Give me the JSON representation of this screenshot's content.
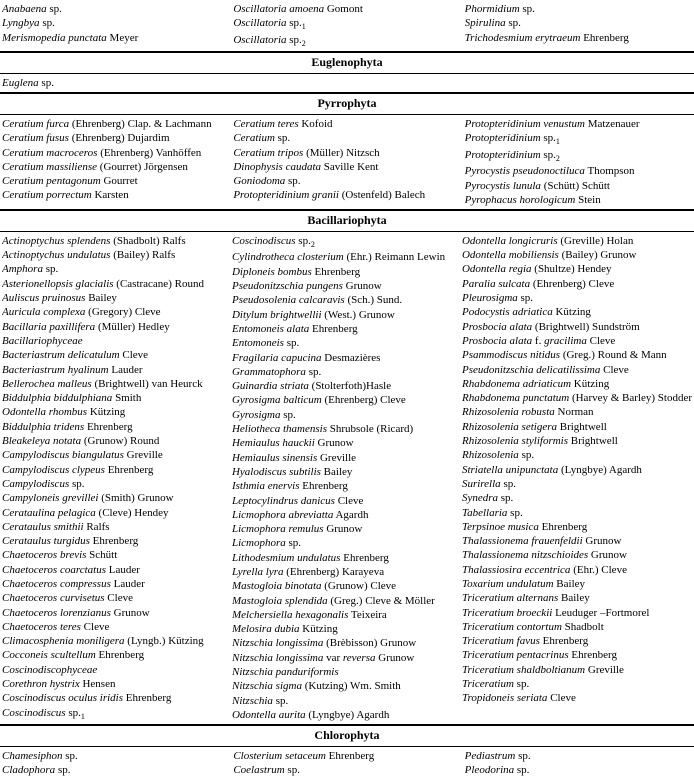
{
  "topRows": {
    "col1": [
      {
        "name": "Anabaena",
        "rest": " sp."
      },
      {
        "name": "Lyngbya",
        "rest": " sp."
      },
      {
        "name": "Merismopedia punctata",
        "auth": " Meyer"
      }
    ],
    "col2": [
      {
        "name": "Oscillatoria amoena",
        "auth": " Gomont"
      },
      {
        "name": "Oscillatoria",
        "rest": " sp.",
        "sub": "1"
      },
      {
        "name": "Oscillatoria",
        "rest": " sp.",
        "sub": "2"
      }
    ],
    "col3": [
      {
        "name": "Phormidium",
        "rest": " sp."
      },
      {
        "name": "Spirulina",
        "rest": " sp."
      },
      {
        "name": "Trichodesmium erytraeum",
        "auth": " Ehrenberg"
      }
    ]
  },
  "sections": [
    {
      "title": "Euglenophyta",
      "cols": [
        [
          {
            "name": "Euglena",
            "rest": " sp."
          }
        ],
        [],
        []
      ]
    },
    {
      "title": "Pyrrophyta",
      "cols": [
        [
          {
            "name": "Ceratium furca",
            "auth": " (Ehrenberg) Clap. & Lachmann"
          },
          {
            "name": "Ceratium fusus",
            "auth": " (Ehrenberg) Dujardim"
          },
          {
            "name": "Ceratium macroceros",
            "auth": " (Ehrenberg) Vanhöffen"
          },
          {
            "name": "Ceratium massiliense",
            "auth": " (Gourret) Jörgensen"
          },
          {
            "name": "Ceratium pentagonum",
            "auth": " Gourret"
          },
          {
            "name": "Ceratium porrectum",
            "auth": " Karsten"
          }
        ],
        [
          {
            "name": "Ceratium teres",
            "auth": " Kofoid"
          },
          {
            "name": "Ceratium",
            "rest": " sp."
          },
          {
            "name": "Ceratium tripos",
            "auth": " (Müller) Nitzsch"
          },
          {
            "name": "Dinophysis caudata",
            "auth": " Saville Kent"
          },
          {
            "name": "Goniodoma",
            "rest": " sp."
          },
          {
            "name": "Protopteridinium granii",
            "auth": " (Ostenfeld) Balech"
          }
        ],
        [
          {
            "name": "Protopteridinium venustum",
            "auth": " Matzenauer"
          },
          {
            "name": "Protopteridinium",
            "rest": " sp.",
            "sub": "1"
          },
          {
            "name": "Protopteridinium",
            "rest": " sp.",
            "sub": "2"
          },
          {
            "name": "Pyrocystis pseudonoctiluca",
            "auth": " Thompson"
          },
          {
            "name": "Pyrocystis lunula",
            "auth": " (Schütt) Schütt"
          },
          {
            "name": "Pyrophacus horologicum",
            "auth": " Stein"
          }
        ]
      ]
    },
    {
      "title": "Bacillariophyta",
      "cols": [
        [
          {
            "name": "Actinoptychus splendens",
            "auth": " (Shadbolt) Ralfs"
          },
          {
            "name": "Actinoptychus undulatus",
            "auth": " (Bailey) Ralfs"
          },
          {
            "name": "Amphora",
            "rest": " sp."
          },
          {
            "name": "Asterionellopsis glacialis",
            "auth": " (Castracane) Round"
          },
          {
            "name": "Auliscus pruinosus",
            "auth": " Bailey"
          },
          {
            "name": "Auricula complexa",
            "auth": " (Gregory) Cleve"
          },
          {
            "name": "Bacillaria paxillifera",
            "auth": " (Müller) Hedley"
          },
          {
            "name": "Bacillariophyceae",
            "auth": ""
          },
          {
            "name": "Bacteriastrum delicatulum",
            "auth": " Cleve"
          },
          {
            "name": "Bacteriastrum hyalinum",
            "auth": " Lauder"
          },
          {
            "name": "Bellerochea malleus",
            "auth": " (Brightwell) van Heurck"
          },
          {
            "plain": " "
          },
          {
            "name": "Biddulphia biddulphiana",
            "auth": " Smith"
          },
          {
            "plain": " "
          },
          {
            "name": "Odontella rhombus",
            "auth": " Kützing"
          },
          {
            "name": "Biddulphia tridens",
            "auth": " Ehrenberg"
          },
          {
            "name": "Bleakeleya notata",
            "auth": " (Grunow) Round"
          },
          {
            "name": "Campylodiscus biangulatus",
            "auth": " Greville"
          },
          {
            "name": "Campylodiscus clypeus",
            "auth": " Ehrenberg"
          },
          {
            "name": "Campylodiscus",
            "rest": " sp."
          },
          {
            "name": "Campyloneis grevillei",
            "auth": " (Smith) Grunow"
          },
          {
            "name": "Cerataulina pelagica",
            "auth": " (Cleve) Hendey"
          },
          {
            "name": "Cerataulus smithii",
            "auth": " Ralfs"
          },
          {
            "name": "Cerataulus turgidus",
            "auth": " Ehrenberg"
          },
          {
            "name": "Chaetoceros brevis",
            "auth": " Schütt"
          },
          {
            "name": "Chaetoceros coarctatus",
            "auth": " Lauder"
          },
          {
            "name": "Chaetoceros compressus",
            "auth": " Lauder"
          },
          {
            "name": "Chaetoceros curvisetus",
            "auth": " Cleve"
          },
          {
            "name": "Chaetoceros lorenzianus",
            "auth": " Grunow"
          },
          {
            "name": "Chaetoceros teres",
            "auth": " Cleve"
          },
          {
            "plain": " "
          },
          {
            "name": "Climacosphenia moniligera",
            "auth": " (Lyngb.) Kützing"
          },
          {
            "name": "Cocconeis scultellum",
            "auth": " Ehrenberg"
          },
          {
            "name": "Coscinodiscophyceae",
            "auth": ""
          },
          {
            "name": "Corethron hystrix",
            "auth": " Hensen"
          },
          {
            "name": "Coscinodiscus oculus iridis",
            "auth": " Ehrenberg"
          },
          {
            "name": "Coscinodiscus",
            "rest": " sp.",
            "sub": "1"
          }
        ],
        [
          {
            "name": "Coscinodiscus",
            "rest": " sp.",
            "sub": "2"
          },
          {
            "name": "Cylindrotheca closterium",
            "auth": " (Ehr.) Reimann Lewin"
          },
          {
            "name": "Diploneis bombus",
            "auth": " Ehrenberg"
          },
          {
            "name": "Pseudonitzschia pungens",
            "auth": " Grunow"
          },
          {
            "name": "Pseudosolenia calcaravis",
            "auth": " (Sch.) Sund."
          },
          {
            "name": "Ditylum brightwellii",
            "auth": " (West.) Grunow"
          },
          {
            "name": "Entomoneis alata",
            "auth": " Ehrenberg"
          },
          {
            "name": "Entomoneis",
            "rest": " sp."
          },
          {
            "name": "Fragilaria capucina",
            "auth": " Desmazières"
          },
          {
            "name": "Grammatophora",
            "rest": " sp."
          },
          {
            "name": "Guinardia striata",
            "auth": " (Stolterfoth)Hasle"
          },
          {
            "plain": " "
          },
          {
            "name": "Gyrosigma balticum",
            "auth": " (Ehrenberg) Cleve"
          },
          {
            "plain": " "
          },
          {
            "name": "Gyrosigma",
            "rest": " sp."
          },
          {
            "name": "Heliotheca thamensis",
            "auth": " Shrubsole (Ricard)"
          },
          {
            "name": "Hemiaulus hauckii",
            "auth": " Grunow"
          },
          {
            "name": "Hemiaulus sinensis",
            "auth": " Greville"
          },
          {
            "name": "Hyalodiscus subtilis",
            "auth": " Bailey"
          },
          {
            "name": "Isthmia enervis",
            "auth": " Ehrenberg"
          },
          {
            "name": "Leptocylindrus danicus",
            "auth": " Cleve"
          },
          {
            "name": "Licmophora abreviatta",
            "auth": " Agardh"
          },
          {
            "name": "Licmophora remulus",
            "auth": " Grunow"
          },
          {
            "name": "Licmophora",
            "rest": " sp."
          },
          {
            "name": "Lithodesmium undulatus",
            "auth": " Ehrenberg"
          },
          {
            "name": "Lyrella lyra",
            "auth": " (Ehrenberg) Karayeva"
          },
          {
            "name": "Mastogloia binotata",
            "auth": " (Grunow) Cleve"
          },
          {
            "name": "Mastogloia splendida",
            "auth": " (Greg.) Cleve & Möller"
          },
          {
            "name": "Melchersiella hexagonalis",
            "auth": " Teixeira"
          },
          {
            "name": "Melosira dubia",
            "auth": " Kützing"
          },
          {
            "plain": " "
          },
          {
            "name": "Nitzschia longissima",
            "auth": " (Brèbisson) Grunow"
          },
          {
            "name": "Nitzschia longissima",
            "auth": " var ",
            "name2": "reversa",
            "auth2": " Grunow"
          },
          {
            "name": "Nitzschia panduriformis",
            "auth": ""
          },
          {
            "name": "Nitzschia sigma",
            "auth": " (Kutzing) Wm. Smith"
          },
          {
            "name": "Nitzschia",
            "rest": " sp."
          },
          {
            "name": "Odontella aurita",
            "auth": " (Lyngbye) Agardh"
          }
        ],
        [
          {
            "name": "Odontella longicruris",
            "auth": " (Greville) Holan"
          },
          {
            "name": "Odontella mobiliensis",
            "auth": " (Bailey) Grunow"
          },
          {
            "name": "Odontella regia",
            "auth": " (Shultze) Hendey"
          },
          {
            "name": "Paralia sulcata",
            "auth": " (Ehrenberg) Cleve"
          },
          {
            "name": "Pleurosigma",
            "rest": " sp."
          },
          {
            "name": "Podocystis adriatica",
            "auth": " Kützing"
          },
          {
            "name": "Prosbocia alata",
            "auth": " (Brightwell) Sundström"
          },
          {
            "name": "Prosbocia alata",
            "auth": " f. ",
            "name2": "gracilima",
            "auth2": " Cleve"
          },
          {
            "name": "Psammodiscus nitidus",
            "auth": " (Greg.) Round & Mann"
          },
          {
            "name": "Pseudonitzschia delicatilissima",
            "auth": " Cleve"
          },
          {
            "name": "Rhabdonema adriaticum",
            "auth": " Kützing"
          },
          {
            "name": "Rhabdonema punctatum",
            "auth": " (Harvey & Barley) Stodder"
          },
          {
            "plain": " "
          },
          {
            "plain": " "
          },
          {
            "name": "Rhizosolenia robusta",
            "auth": " Norman"
          },
          {
            "name": "Rhizosolenia setigera",
            "auth": " Brightwell"
          },
          {
            "name": "Rhizosolenia styliformis",
            "auth": " Brightwell"
          },
          {
            "name": "Rhizosolenia",
            "rest": " sp."
          },
          {
            "name": "Striatella unipunctata",
            "auth": " (Lyngbye) Agardh"
          },
          {
            "name": "Surirella",
            "rest": " sp."
          },
          {
            "name": "Synedra",
            "rest": " sp."
          },
          {
            "name": "Tabellaria",
            "rest": " sp."
          },
          {
            "name": "Terpsinoe musica",
            "auth": " Ehrenberg"
          },
          {
            "name": "Thalassionema frauenfeldii",
            "auth": " Grunow"
          },
          {
            "name": "Thalassionema nitzschioides",
            "auth": " Grunow"
          },
          {
            "name": "Thalassiosira eccentrica",
            "auth": " (Ehr.) Cleve"
          },
          {
            "name": "Toxarium undulatum",
            "auth": " Bailey"
          },
          {
            "name": "Triceratium alternans",
            "auth": " Bailey"
          },
          {
            "name": "Triceratium broeckii",
            "auth": " Leuduger –Fortmorel"
          },
          {
            "name": "Triceratium contortum",
            "auth": " Shadbolt"
          },
          {
            "name": "Triceratium favus",
            "auth": " Ehrenberg"
          },
          {
            "name": "Triceratium pentacrinus",
            "auth": " Ehrenberg"
          },
          {
            "name": "Triceratium shaldboltianum",
            "auth": " Greville"
          },
          {
            "name": "Triceratium",
            "rest": " sp."
          },
          {
            "name": "Tropidoneis seriata",
            "auth": " Cleve"
          }
        ]
      ]
    },
    {
      "title": "Chlorophyta",
      "noBottom": true,
      "cols": [
        [
          {
            "name": "Chamesiphon",
            "rest": " sp."
          },
          {
            "name": "Cladophora",
            "rest": " sp."
          }
        ],
        [
          {
            "name": "Closterium setaceum",
            "auth": " Ehrenberg"
          },
          {
            "name": "Coelastrum",
            "rest": " sp."
          }
        ],
        [
          {
            "name": "Pediastrum",
            "rest": " sp."
          },
          {
            "name": "Pleodorina",
            "rest": " sp."
          }
        ]
      ]
    }
  ]
}
